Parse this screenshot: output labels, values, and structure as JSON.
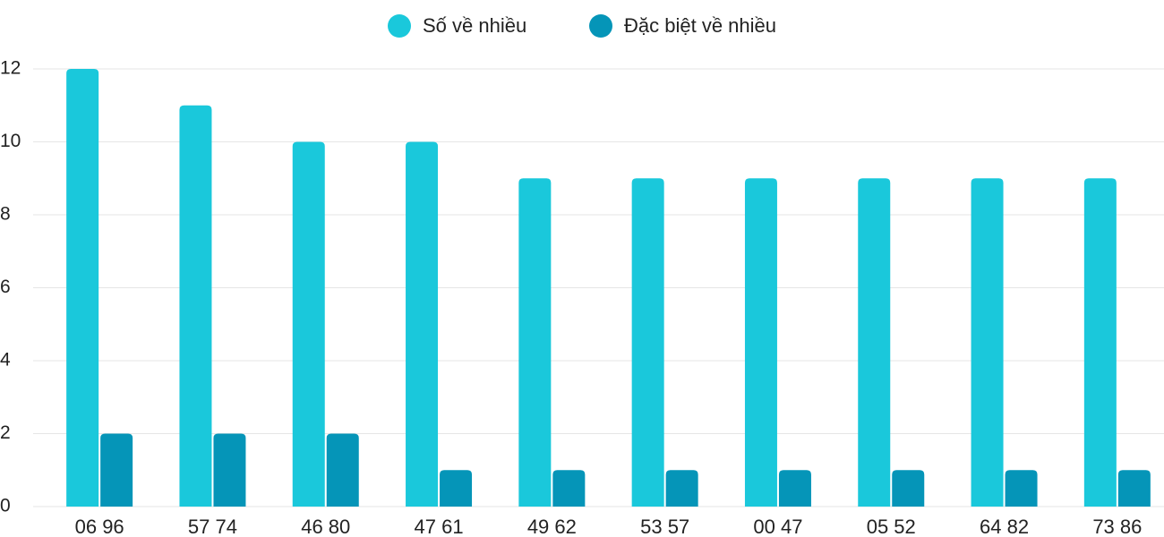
{
  "chart_data": {
    "type": "bar",
    "categories": [
      "06 96",
      "57 74",
      "46 80",
      "47 61",
      "49 62",
      "53 57",
      "00 47",
      "05 52",
      "64 82",
      "73 86"
    ],
    "series": [
      {
        "name": "Số về nhiều",
        "color": "#1ac8db",
        "values": [
          12,
          11,
          10,
          10,
          9,
          9,
          9,
          9,
          9,
          9
        ]
      },
      {
        "name": "Đặc biệt về nhiều",
        "color": "#0595b8",
        "values": [
          2,
          2,
          2,
          1,
          1,
          1,
          1,
          1,
          1,
          1
        ]
      }
    ],
    "ylim": [
      0,
      12
    ],
    "yticks": [
      0,
      2,
      4,
      6,
      8,
      10,
      12
    ],
    "grid": true,
    "legend": "top"
  }
}
